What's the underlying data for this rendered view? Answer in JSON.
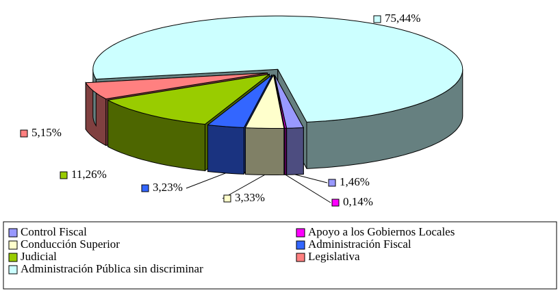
{
  "chart_data": {
    "type": "pie",
    "categories": [
      "Control Fiscal",
      "Apoyo a los Gobiernos Locales",
      "Conducción Superior",
      "Administración Fiscal",
      "Judicial",
      "Legislativa",
      "Administración Pública sin discriminar"
    ],
    "values": [
      1.46,
      0.14,
      3.33,
      3.23,
      11.26,
      5.15,
      75.44
    ],
    "value_labels": [
      "1,46%",
      "0,14%",
      "3,33%",
      "3,23%",
      "11,26%",
      "5,15%",
      "75,44%"
    ],
    "colors": [
      "#9999ff",
      "#ff00ff",
      "#ffffcc",
      "#3366ff",
      "#99cc00",
      "#ff8080",
      "#ccffff"
    ]
  }
}
